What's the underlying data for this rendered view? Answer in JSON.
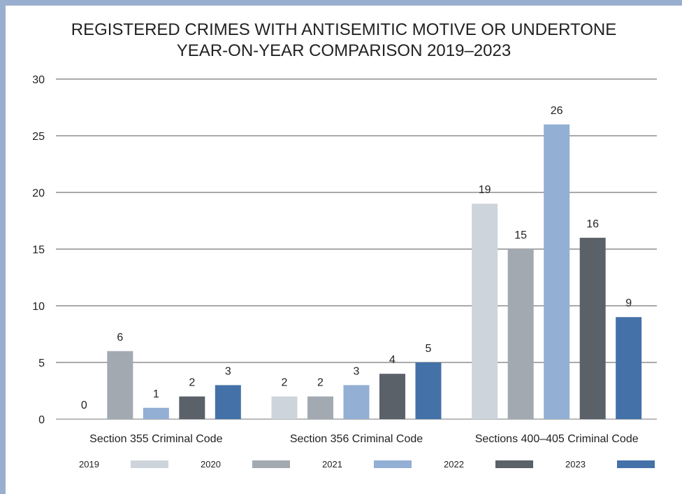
{
  "chart_data": {
    "type": "bar",
    "title": [
      "REGISTERED CRIMES WITH ANTISEMITIC MOTIVE OR UNDERTONE",
      "YEAR-ON-YEAR COMPARISON 2019–2023"
    ],
    "categories": [
      "Section 355 Criminal Code",
      "Section 356 Criminal Code",
      "Sections 400–405 Criminal Code"
    ],
    "series": [
      {
        "name": "2019",
        "color": "#cdd4dc",
        "values": [
          0,
          2,
          19
        ]
      },
      {
        "name": "2020",
        "color": "#a2a9b1",
        "values": [
          6,
          2,
          15
        ]
      },
      {
        "name": "2021",
        "color": "#93afd4",
        "values": [
          1,
          3,
          26
        ]
      },
      {
        "name": "2022",
        "color": "#5a6169",
        "values": [
          2,
          4,
          16
        ]
      },
      {
        "name": "2023",
        "color": "#4472a8",
        "values": [
          3,
          5,
          9
        ]
      }
    ],
    "ylim": [
      0,
      30
    ],
    "yticks": [
      0,
      5,
      10,
      15,
      20,
      25,
      30
    ],
    "grid": true,
    "legend": "bottom"
  }
}
